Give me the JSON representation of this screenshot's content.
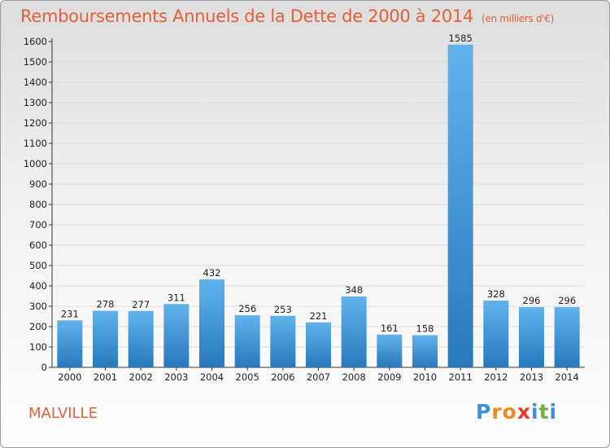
{
  "title": "Remboursements Annuels de la Dette de 2000 à 2014",
  "unit": "(en milliers d'€)",
  "commune": "MALVILLE",
  "logo": [
    "P",
    "r",
    "o",
    "x",
    "i",
    "t",
    "i"
  ],
  "colors": {
    "title": "#e0603a",
    "bar_light": "#62b3ec",
    "bar_dark": "#2878bd",
    "grid": "#dcdcdc",
    "logo": [
      "#3a8fd6",
      "#f08a20",
      "#f08a20",
      "#e83a2a",
      "#3a8fd6",
      "#6db33f",
      "#3a8fd6"
    ]
  },
  "chart_data": {
    "type": "bar",
    "categories": [
      "2000",
      "2001",
      "2002",
      "2003",
      "2004",
      "2005",
      "2006",
      "2007",
      "2008",
      "2009",
      "2010",
      "2011",
      "2012",
      "2013",
      "2014"
    ],
    "values": [
      231,
      278,
      277,
      311,
      432,
      256,
      253,
      221,
      348,
      161,
      158,
      1585,
      328,
      296,
      296
    ],
    "yticks": [
      0,
      100,
      200,
      300,
      400,
      500,
      600,
      700,
      800,
      900,
      1000,
      1100,
      1200,
      1300,
      1400,
      1500,
      1600
    ],
    "ylim": [
      0,
      1600
    ],
    "grid": true
  }
}
